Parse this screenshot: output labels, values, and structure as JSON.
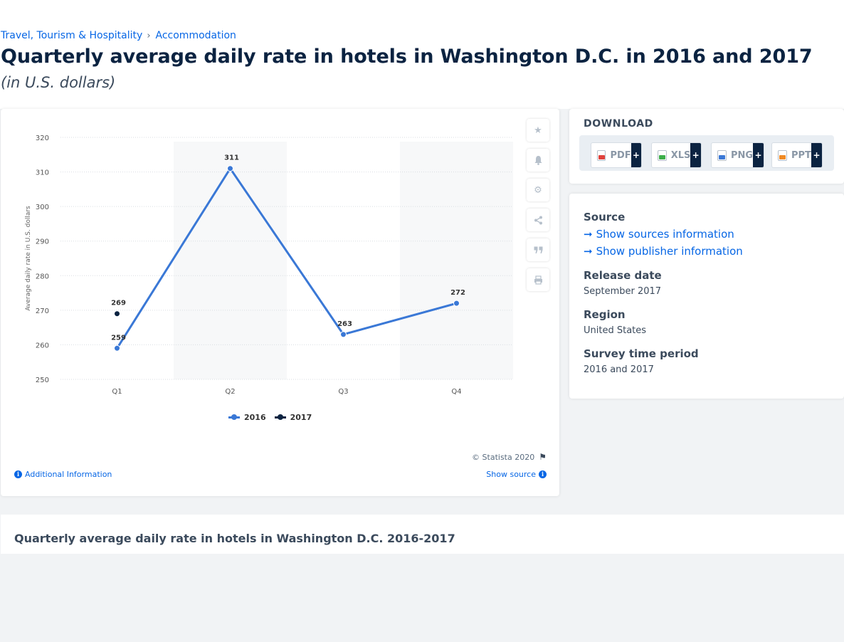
{
  "breadcrumb": {
    "items": [
      "Travel, Tourism & Hospitality",
      "Accommodation"
    ],
    "separator": "›"
  },
  "page": {
    "title": "Quarterly average daily rate in hotels in Washington D.C. in 2016 and 2017",
    "subtitle": "(in U.S. dollars)"
  },
  "chart_data": {
    "type": "line",
    "categories": [
      "Q1",
      "Q2",
      "Q3",
      "Q4"
    ],
    "series": [
      {
        "name": "2016",
        "color": "#3a78d6",
        "values": [
          259,
          311,
          263,
          272
        ]
      },
      {
        "name": "2017",
        "color": "#0b2341",
        "values": [
          269,
          null,
          null,
          null
        ]
      }
    ],
    "ylabel": "Average daily rate in U.S. dollars",
    "ylim": [
      250,
      320
    ],
    "yticks": [
      250,
      260,
      270,
      280,
      290,
      300,
      310,
      320
    ],
    "grid": true,
    "legend": "bottom-center",
    "data_labels": true
  },
  "chart_footer": {
    "copyright": "© Statista 2020",
    "additional_info": "Additional Information",
    "show_source": "Show source"
  },
  "tools": [
    "star-icon",
    "bell-icon",
    "gear-icon",
    "share-icon",
    "quote-icon",
    "print-icon"
  ],
  "download": {
    "title": "DOWNLOAD",
    "buttons": [
      {
        "label": "PDF",
        "color": "#e0413b"
      },
      {
        "label": "XLS",
        "color": "#3cae4a"
      },
      {
        "label": "PNG",
        "color": "#3a78d6"
      },
      {
        "label": "PPT",
        "color": "#f08a24"
      }
    ],
    "plus": "+"
  },
  "meta": {
    "source_label": "Source",
    "show_sources": "Show sources information",
    "show_publisher": "Show publisher information",
    "release_label": "Release date",
    "release_value": "September 2017",
    "region_label": "Region",
    "region_value": "United States",
    "survey_label": "Survey time period",
    "survey_value": "2016 and 2017"
  },
  "related": {
    "title": "Quarterly average daily rate in hotels in Washington D.C. 2016-2017"
  }
}
